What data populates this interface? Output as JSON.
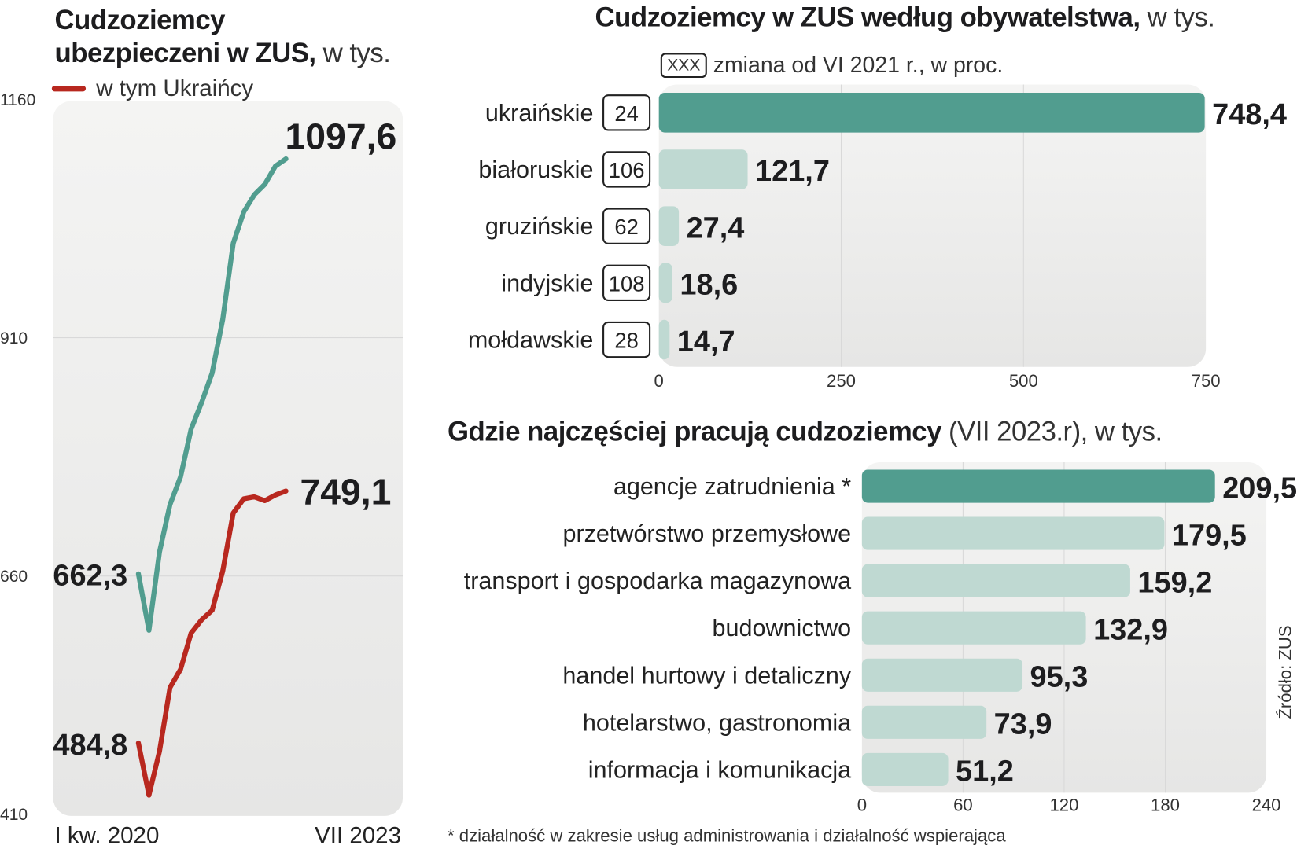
{
  "line_chart": {
    "title_bold": "Cudzoziemcy ubezpieczeni w ZUS,",
    "title_bold_line1": "Cudzoziemcy",
    "title_bold_line2": "ubezpieczeni w ZUS,",
    "title_light": "w tys."
  },
  "bar_chart_1": {
    "title_bold": "Cudzoziemcy w ZUS według obywatelstwa,",
    "title_light": "w tys.",
    "legend_box": "XXX",
    "legend_text": "zmiana od VI 2021 r., w proc."
  },
  "bar_chart_2": {
    "title_bold": "Gdzie najczęściej pracują cudzoziemcy",
    "title_light": "(VII 2023.r), w tys."
  },
  "footnote": "* działalność w zakresie usług administrowania i działalność wspierająca",
  "source": "Źródło: ZUS",
  "colors": {
    "green": "#519d8f",
    "light_green": "#bfd9d2",
    "red": "#b8281f",
    "panel": "#ededec",
    "text": "#1d1d1f"
  },
  "chart_data": [
    {
      "type": "line",
      "title": "Cudzoziemcy ubezpieczeni w ZUS, w tys.",
      "x_start_label": "I kw. 2020",
      "x_end_label": "VII 2023",
      "ylim": [
        410,
        1160
      ],
      "yticks": [
        1160,
        910,
        660,
        410
      ],
      "grid": true,
      "legend": "top-left",
      "series": [
        {
          "color": "#519d8f",
          "start_label": "662,3",
          "end_label": "1097,6",
          "values": [
            662.3,
            603,
            685,
            735,
            764,
            814,
            842,
            873,
            929,
            1009,
            1042,
            1060,
            1071,
            1090,
            1097.6
          ]
        },
        {
          "name": "w tym Ukraińcy",
          "color": "#b8281f",
          "start_label": "484,8",
          "end_label": "749,1",
          "values": [
            484.8,
            430,
            476,
            543,
            562,
            600,
            614,
            624,
            665,
            726,
            741,
            743,
            739,
            745,
            749.1
          ]
        }
      ]
    },
    {
      "type": "bar",
      "orientation": "horizontal",
      "title": "Cudzoziemcy w ZUS według obywatelstwa, w tys.",
      "categories": [
        "ukraińskie",
        "białoruskie",
        "gruzińskie",
        "indyjskie",
        "mołdawskie"
      ],
      "values": [
        748.4,
        121.7,
        27.4,
        18.6,
        14.7
      ],
      "value_labels": [
        "748,4",
        "121,7",
        "27,4",
        "18,6",
        "14,7"
      ],
      "change_pct": [
        "24",
        "106",
        "62",
        "108",
        "28"
      ],
      "xlim": [
        0,
        750
      ],
      "xticks": [
        0,
        250,
        500,
        750
      ],
      "grid": true
    },
    {
      "type": "bar",
      "orientation": "horizontal",
      "title": "Gdzie najczęściej pracują cudzoziemcy (VII 2023.r), w tys.",
      "categories": [
        "agencje zatrudnienia *",
        "przetwórstwo przemysłowe",
        "transport i gospodarka magazynowa",
        "budownictwo",
        "handel hurtowy i detaliczny",
        "hotelarstwo, gastronomia",
        "informacja i komunikacja"
      ],
      "values": [
        209.5,
        179.5,
        159.2,
        132.9,
        95.3,
        73.9,
        51.2
      ],
      "value_labels": [
        "209,5",
        "179,5",
        "159,2",
        "132,9",
        "95,3",
        "73,9",
        "51,2"
      ],
      "xlim": [
        0,
        240
      ],
      "xticks": [
        0,
        60,
        120,
        180,
        240
      ],
      "grid": true
    }
  ]
}
